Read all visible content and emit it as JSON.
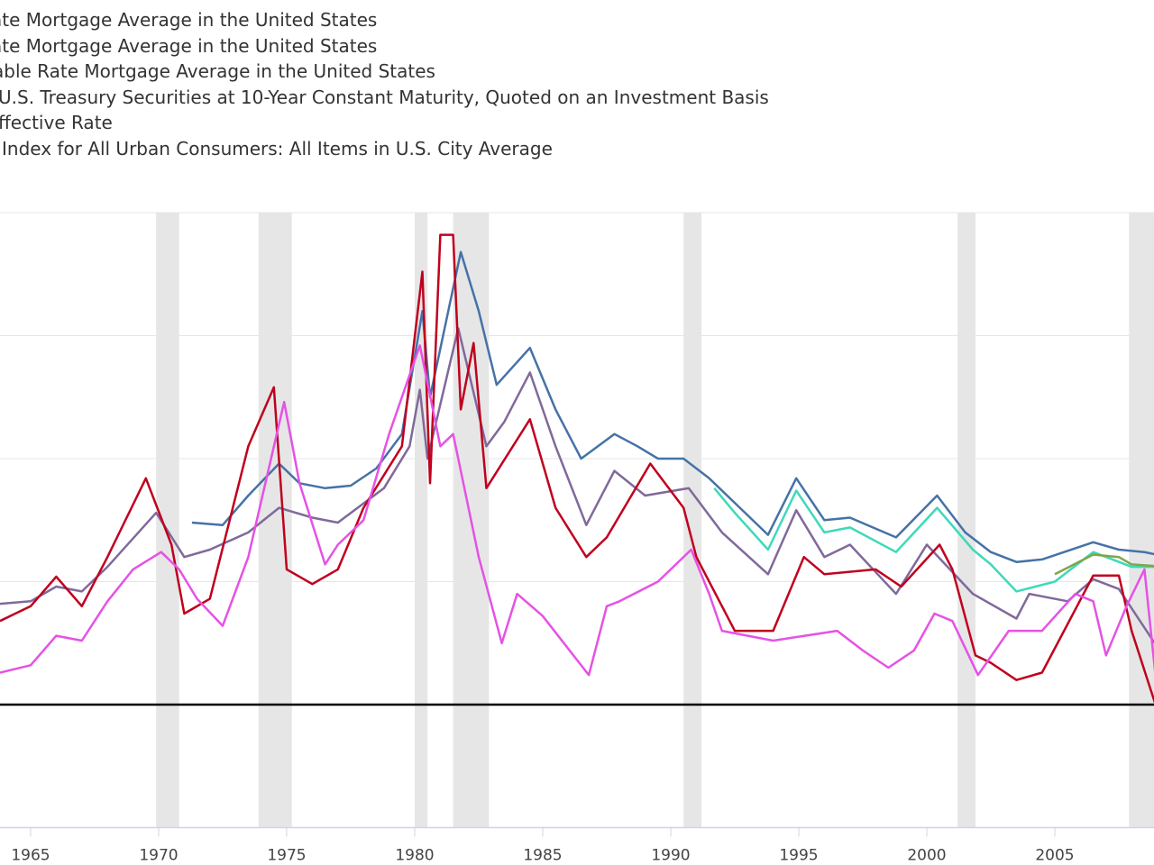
{
  "chart_data": {
    "type": "line",
    "title": "",
    "xlabel": "",
    "ylabel": "",
    "xlim": [
      1963.8,
      2009.4
    ],
    "ylim": [
      -5,
      20
    ],
    "grid": true,
    "legend_position": "top-left",
    "x_ticks": [
      "1965",
      "1970",
      "1975",
      "1980",
      "1985",
      "1990",
      "1995",
      "2000",
      "2005"
    ],
    "recessions": [
      [
        1969.9,
        1970.8
      ],
      [
        1973.9,
        1975.2
      ],
      [
        1980.0,
        1980.5
      ],
      [
        1981.5,
        1982.9
      ],
      [
        1990.5,
        1991.2
      ],
      [
        2001.2,
        2001.9
      ],
      [
        2007.9,
        2009.5
      ]
    ],
    "series": [
      {
        "name": "ate Mortgage Average in the United States",
        "color": "#4572a7",
        "points": [
          [
            1971.3,
            7.4
          ],
          [
            1972.5,
            7.3
          ],
          [
            1973.5,
            8.5
          ],
          [
            1974.7,
            9.8
          ],
          [
            1975.5,
            9.0
          ],
          [
            1976.5,
            8.8
          ],
          [
            1977.5,
            8.9
          ],
          [
            1978.5,
            9.6
          ],
          [
            1979.5,
            11
          ],
          [
            1980.3,
            16
          ],
          [
            1980.6,
            12.5
          ],
          [
            1981.8,
            18.4
          ],
          [
            1982.5,
            16
          ],
          [
            1983.2,
            13
          ],
          [
            1984.5,
            14.5
          ],
          [
            1985.5,
            12
          ],
          [
            1986.5,
            10
          ],
          [
            1987.8,
            11
          ],
          [
            1988.7,
            10.5
          ],
          [
            1989.5,
            10
          ],
          [
            1990.5,
            10
          ],
          [
            1991.5,
            9.2
          ],
          [
            1992.5,
            8.2
          ],
          [
            1993.8,
            6.9
          ],
          [
            1994.9,
            9.2
          ],
          [
            1996,
            7.5
          ],
          [
            1997,
            7.6
          ],
          [
            1998.8,
            6.8
          ],
          [
            2000.4,
            8.5
          ],
          [
            2001.5,
            7
          ],
          [
            2002.5,
            6.2
          ],
          [
            2003.5,
            5.8
          ],
          [
            2004.5,
            5.9
          ],
          [
            2006.5,
            6.6
          ],
          [
            2007.5,
            6.3
          ],
          [
            2008.5,
            6.2
          ],
          [
            2009.4,
            6.0
          ]
        ]
      },
      {
        "name": "ate Mortgage Average in the United States",
        "color": "#3fd9b8",
        "points": [
          [
            1991.7,
            8.8
          ],
          [
            1992.5,
            7.8
          ],
          [
            1993.8,
            6.3
          ],
          [
            1994.9,
            8.7
          ],
          [
            1996,
            7.0
          ],
          [
            1997,
            7.2
          ],
          [
            1998.8,
            6.2
          ],
          [
            2000.4,
            8.0
          ],
          [
            2001.8,
            6.3
          ],
          [
            2002.5,
            5.7
          ],
          [
            2003.5,
            4.6
          ],
          [
            2005,
            5.0
          ],
          [
            2006.5,
            6.2
          ],
          [
            2008,
            5.6
          ],
          [
            2009.4,
            5.6
          ]
        ]
      },
      {
        "name": "able Rate Mortgage Average in the United States",
        "color": "#7fa64a",
        "points": [
          [
            2005,
            5.3
          ],
          [
            2006.5,
            6.1
          ],
          [
            2007.5,
            6.0
          ],
          [
            2008,
            5.7
          ],
          [
            2009.4,
            5.6
          ]
        ]
      },
      {
        "name": "U.S. Treasury Securities at 10-Year Constant Maturity, Quoted on an Investment Basis",
        "color": "#80699b",
        "points": [
          [
            1963.8,
            4.1
          ],
          [
            1965,
            4.2
          ],
          [
            1966,
            4.8
          ],
          [
            1967,
            4.6
          ],
          [
            1968,
            5.6
          ],
          [
            1969.9,
            7.8
          ],
          [
            1971,
            6.0
          ],
          [
            1972,
            6.3
          ],
          [
            1973.5,
            7.0
          ],
          [
            1974.7,
            8.0
          ],
          [
            1976,
            7.6
          ],
          [
            1977,
            7.4
          ],
          [
            1978.8,
            8.8
          ],
          [
            1979.8,
            10.5
          ],
          [
            1980.2,
            12.8
          ],
          [
            1980.5,
            10
          ],
          [
            1981.7,
            15.3
          ],
          [
            1982.8,
            10.5
          ],
          [
            1983.5,
            11.5
          ],
          [
            1984.5,
            13.5
          ],
          [
            1985.5,
            10.5
          ],
          [
            1986.7,
            7.3
          ],
          [
            1987.8,
            9.5
          ],
          [
            1989,
            8.5
          ],
          [
            1990.7,
            8.8
          ],
          [
            1992,
            7.0
          ],
          [
            1993.8,
            5.3
          ],
          [
            1994.9,
            7.9
          ],
          [
            1996,
            6
          ],
          [
            1997,
            6.5
          ],
          [
            1998.8,
            4.5
          ],
          [
            2000,
            6.5
          ],
          [
            2001.8,
            4.5
          ],
          [
            2003.5,
            3.5
          ],
          [
            2004,
            4.5
          ],
          [
            2005.5,
            4.2
          ],
          [
            2006.5,
            5.1
          ],
          [
            2007.5,
            4.7
          ],
          [
            2008.9,
            2.5
          ],
          [
            2009.4,
            3.7
          ]
        ]
      },
      {
        "name": "ffective Rate",
        "color": "#c0001e",
        "points": [
          [
            1963.8,
            3.4
          ],
          [
            1965,
            4.0
          ],
          [
            1966,
            5.2
          ],
          [
            1967,
            4.0
          ],
          [
            1968,
            6.0
          ],
          [
            1969.5,
            9.2
          ],
          [
            1970.5,
            6.5
          ],
          [
            1971,
            3.7
          ],
          [
            1972,
            4.3
          ],
          [
            1973.5,
            10.5
          ],
          [
            1974.5,
            12.9
          ],
          [
            1975,
            5.5
          ],
          [
            1976,
            4.9
          ],
          [
            1977,
            5.5
          ],
          [
            1978,
            8
          ],
          [
            1979.5,
            10.5
          ],
          [
            1980.3,
            17.6
          ],
          [
            1980.6,
            9.0
          ],
          [
            1981,
            19.1
          ],
          [
            1981.5,
            19.1
          ],
          [
            1981.8,
            12
          ],
          [
            1982.3,
            14.7
          ],
          [
            1982.8,
            8.8
          ],
          [
            1984.5,
            11.6
          ],
          [
            1985.5,
            8
          ],
          [
            1986.7,
            6
          ],
          [
            1987.5,
            6.8
          ],
          [
            1989.2,
            9.8
          ],
          [
            1990.5,
            8.0
          ],
          [
            1991,
            6
          ],
          [
            1992.5,
            3.0
          ],
          [
            1994,
            3.0
          ],
          [
            1995.2,
            6
          ],
          [
            1996,
            5.3
          ],
          [
            1998,
            5.5
          ],
          [
            1999,
            4.8
          ],
          [
            2000.5,
            6.5
          ],
          [
            2001,
            5.5
          ],
          [
            2001.9,
            2.0
          ],
          [
            2002.5,
            1.7
          ],
          [
            2003.5,
            1.0
          ],
          [
            2004.5,
            1.3
          ],
          [
            2006.5,
            5.25
          ],
          [
            2007.5,
            5.25
          ],
          [
            2008,
            3
          ],
          [
            2008.9,
            0.1
          ],
          [
            2009.4,
            0.2
          ]
        ]
      },
      {
        "name": "Index for All Urban Consumers: All Items in U.S. City Average",
        "color": "#e552e5",
        "points": [
          [
            1963.8,
            1.3
          ],
          [
            1965,
            1.6
          ],
          [
            1966,
            2.8
          ],
          [
            1967,
            2.6
          ],
          [
            1968,
            4.2
          ],
          [
            1969,
            5.5
          ],
          [
            1970.1,
            6.2
          ],
          [
            1970.8,
            5.5
          ],
          [
            1971.5,
            4.3
          ],
          [
            1972.5,
            3.2
          ],
          [
            1973.5,
            6.0
          ],
          [
            1974.9,
            12.3
          ],
          [
            1975.5,
            9
          ],
          [
            1976.5,
            5.7
          ],
          [
            1977,
            6.5
          ],
          [
            1978,
            7.5
          ],
          [
            1979,
            11
          ],
          [
            1980.2,
            14.6
          ],
          [
            1981,
            10.5
          ],
          [
            1981.5,
            11
          ],
          [
            1982.5,
            6
          ],
          [
            1983.4,
            2.5
          ],
          [
            1984,
            4.5
          ],
          [
            1985,
            3.6
          ],
          [
            1986.8,
            1.2
          ],
          [
            1987.5,
            4
          ],
          [
            1988,
            4.2
          ],
          [
            1989.5,
            5
          ],
          [
            1990.8,
            6.3
          ],
          [
            1991.5,
            4.5
          ],
          [
            1992,
            3.0
          ],
          [
            1994,
            2.6
          ],
          [
            1996.5,
            3.0
          ],
          [
            1997.5,
            2.2
          ],
          [
            1998.5,
            1.5
          ],
          [
            1999.5,
            2.2
          ],
          [
            2000.3,
            3.7
          ],
          [
            2001,
            3.4
          ],
          [
            2002,
            1.2
          ],
          [
            2003.2,
            3.0
          ],
          [
            2004.5,
            3.0
          ],
          [
            2005.8,
            4.5
          ],
          [
            2006.5,
            4.2
          ],
          [
            2007,
            2.0
          ],
          [
            2007.8,
            4.0
          ],
          [
            2008.5,
            5.5
          ],
          [
            2009.0,
            0.5
          ],
          [
            2009.4,
            -1.0
          ]
        ]
      }
    ]
  }
}
